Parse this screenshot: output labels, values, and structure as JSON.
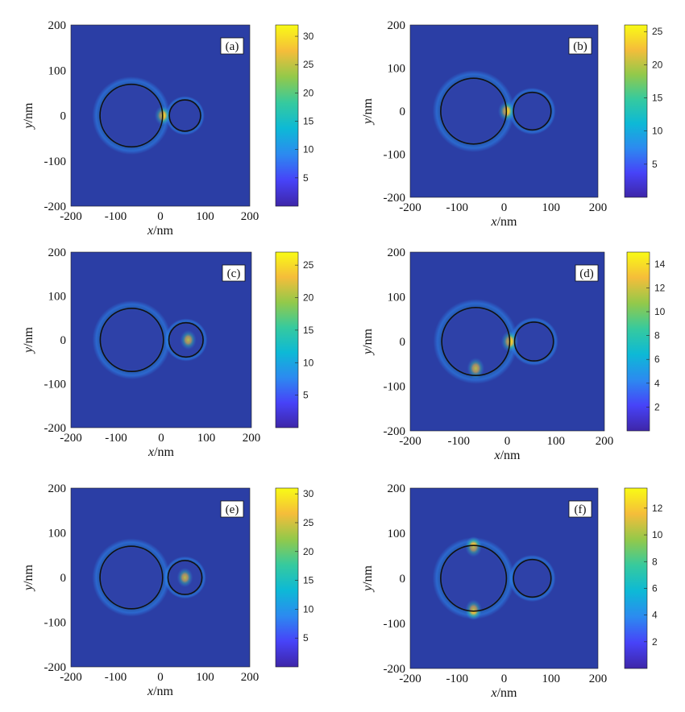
{
  "colors": {
    "background_field": "#2b3ea5",
    "colormap": [
      "#3e26a8",
      "#4743f8",
      "#2c8af0",
      "#0db9d6",
      "#36ca9e",
      "#93c94a",
      "#f5bd3a",
      "#f9fb15"
    ],
    "outline": "#111111"
  },
  "chart_data": [
    {
      "type": "heatmap",
      "panel": "(a)",
      "xlabel": "x/nm",
      "ylabel": "y/nm",
      "xlim": [
        -200,
        200
      ],
      "ylim": [
        -200,
        200
      ],
      "xticks": [
        "-200",
        "-100",
        "0",
        "100",
        "200"
      ],
      "yticks": [
        "200",
        "100",
        "0",
        "-100",
        "-200"
      ],
      "particles": [
        {
          "cx": -65,
          "cy": 0,
          "r": 70
        },
        {
          "cx": 55,
          "cy": 0,
          "r": 35
        }
      ],
      "hotspots": [
        {
          "cx": 5,
          "cy": 0,
          "value": 32
        }
      ],
      "colorbar": {
        "min": 0,
        "max": 32,
        "ticks": [
          "30",
          "25",
          "20",
          "15",
          "10",
          "5"
        ],
        "tick_values": [
          30,
          25,
          20,
          15,
          10,
          5
        ]
      }
    },
    {
      "type": "heatmap",
      "panel": "(b)",
      "xlabel": "x/nm",
      "ylabel": "y/nm",
      "xlim": [
        -200,
        200
      ],
      "ylim": [
        -200,
        200
      ],
      "xticks": [
        "-200",
        "-100",
        "0",
        "100",
        "200"
      ],
      "yticks": [
        "200",
        "100",
        "0",
        "-100",
        "-200"
      ],
      "particles": [
        {
          "cx": -65,
          "cy": 0,
          "r": 70
        },
        {
          "cx": 60,
          "cy": 0,
          "r": 40
        }
      ],
      "hotspots": [
        {
          "cx": 5,
          "cy": 0,
          "value": 26
        }
      ],
      "colorbar": {
        "min": 0,
        "max": 26,
        "ticks": [
          "25",
          "20",
          "15",
          "10",
          "5"
        ],
        "tick_values": [
          25,
          20,
          15,
          10,
          5
        ]
      }
    },
    {
      "type": "heatmap",
      "panel": "(c)",
      "xlabel": "x/nm",
      "ylabel": "y/nm",
      "xlim": [
        -200,
        200
      ],
      "ylim": [
        -200,
        200
      ],
      "xticks": [
        "-200",
        "-100",
        "0",
        "100",
        "200"
      ],
      "yticks": [
        "200",
        "100",
        "0",
        "-100",
        "-200"
      ],
      "particles": [
        {
          "cx": -65,
          "cy": 0,
          "r": 70
        },
        {
          "cx": 55,
          "cy": 0,
          "r": 38
        }
      ],
      "hotspots": [
        {
          "cx": 60,
          "cy": 0,
          "value": 27
        }
      ],
      "colorbar": {
        "min": 0,
        "max": 27,
        "ticks": [
          "25",
          "20",
          "15",
          "10",
          "5"
        ],
        "tick_values": [
          25,
          20,
          15,
          10,
          5
        ]
      }
    },
    {
      "type": "heatmap",
      "panel": "(d)",
      "xlabel": "x/nm",
      "ylabel": "y/nm",
      "xlim": [
        -200,
        200
      ],
      "ylim": [
        -200,
        200
      ],
      "xticks": [
        "-200",
        "-100",
        "0",
        "100",
        "200"
      ],
      "yticks": [
        "200",
        "100",
        "0",
        "-100",
        "-200"
      ],
      "particles": [
        {
          "cx": -65,
          "cy": 0,
          "r": 70
        },
        {
          "cx": 55,
          "cy": 0,
          "r": 40
        }
      ],
      "hotspots": [
        {
          "cx": -65,
          "cy": -60,
          "value": 15
        },
        {
          "cx": 5,
          "cy": 0,
          "value": 15
        }
      ],
      "colorbar": {
        "min": 0,
        "max": 15,
        "ticks": [
          "14",
          "12",
          "10",
          "8",
          "6",
          "4",
          "2"
        ],
        "tick_values": [
          14,
          12,
          10,
          8,
          6,
          4,
          2
        ]
      }
    },
    {
      "type": "heatmap",
      "panel": "(e)",
      "xlabel": "x/nm",
      "ylabel": "y/nm",
      "xlim": [
        -200,
        200
      ],
      "ylim": [
        -200,
        200
      ],
      "xticks": [
        "-200",
        "-100",
        "0",
        "100",
        "200"
      ],
      "yticks": [
        "200",
        "100",
        "0",
        "-100",
        "-200"
      ],
      "particles": [
        {
          "cx": -65,
          "cy": 0,
          "r": 70
        },
        {
          "cx": 55,
          "cy": 0,
          "r": 38
        }
      ],
      "hotspots": [
        {
          "cx": 55,
          "cy": 0,
          "value": 30
        }
      ],
      "colorbar": {
        "min": 0,
        "max": 31,
        "ticks": [
          "30",
          "25",
          "20",
          "15",
          "10",
          "5"
        ],
        "tick_values": [
          30,
          25,
          20,
          15,
          10,
          5
        ]
      }
    },
    {
      "type": "heatmap",
      "panel": "(f)",
      "xlabel": "x/nm",
      "ylabel": "y/nm",
      "xlim": [
        -200,
        200
      ],
      "ylim": [
        -200,
        200
      ],
      "xticks": [
        "-200",
        "-100",
        "0",
        "100",
        "200"
      ],
      "yticks": [
        "200",
        "100",
        "0",
        "-100",
        "-200"
      ],
      "particles": [
        {
          "cx": -65,
          "cy": 0,
          "r": 70
        },
        {
          "cx": 60,
          "cy": 0,
          "r": 40
        }
      ],
      "hotspots": [
        {
          "cx": -65,
          "cy": 70,
          "value": 13
        },
        {
          "cx": -65,
          "cy": -70,
          "value": 13
        }
      ],
      "colorbar": {
        "min": 0,
        "max": 13.5,
        "ticks": [
          "12",
          "10",
          "8",
          "6",
          "4",
          "2"
        ],
        "tick_values": [
          12,
          10,
          8,
          6,
          4,
          2
        ]
      }
    }
  ]
}
